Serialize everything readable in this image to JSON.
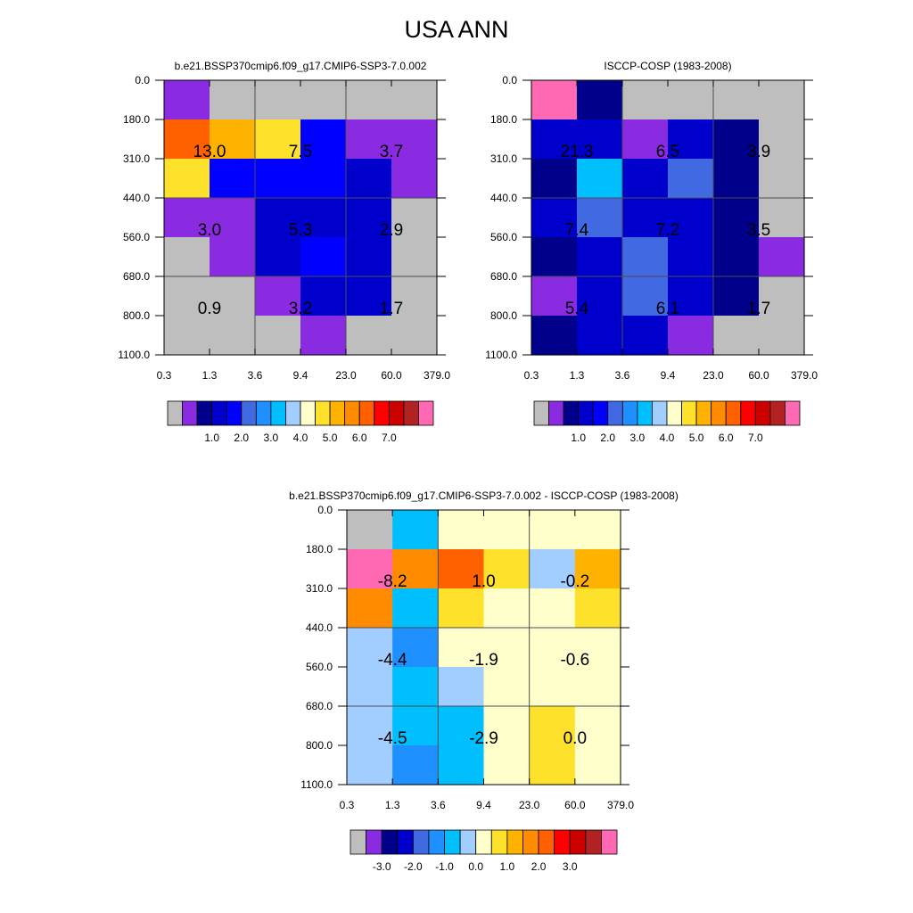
{
  "page_title": "USA ANN",
  "colors": {
    "missing": "#bebebe",
    "grid_line": "#4d4d4d"
  },
  "chart_data": [
    {
      "type": "heatmap",
      "title": "b.e21.BSSP370cmip6.f09_g17.CMIP6-SSP3-7.0.002",
      "x_tick_labels": [
        "0.3",
        "1.3",
        "3.6",
        "9.4",
        "23.0",
        "60.0",
        "379.0"
      ],
      "y_tick_labels": [
        "0.0",
        "180.0",
        "310.0",
        "440.0",
        "560.0",
        "680.0",
        "800.0",
        "1100.0"
      ],
      "cells": [
        [
          1,
          0,
          0,
          0,
          0,
          0
        ],
        [
          13,
          11,
          10,
          4,
          1,
          1
        ],
        [
          10,
          4,
          4,
          4,
          3,
          1
        ],
        [
          1,
          1,
          3,
          3,
          3,
          0
        ],
        [
          0,
          1,
          3,
          4,
          3,
          0
        ],
        [
          0,
          0,
          1,
          3,
          3,
          0
        ],
        [
          0,
          0,
          0,
          1,
          0,
          0
        ]
      ],
      "annotations": [
        [
          "13.0",
          "7.5",
          "3.7"
        ],
        [
          "3.0",
          "5.3",
          "2.9"
        ],
        [
          "0.9",
          "3.2",
          "1.7"
        ]
      ],
      "colorbar": {
        "colors": [
          "#bebebe",
          "#8a2be2",
          "#00008b",
          "#0000cd",
          "#0000ff",
          "#4169e1",
          "#1e90ff",
          "#00bfff",
          "#a2cdff",
          "#ffffcc",
          "#fde12a",
          "#ffb300",
          "#ff8c00",
          "#ff6000",
          "#ff0000",
          "#cd0000",
          "#b22222",
          "#ff69b4"
        ],
        "tick_labels": [
          "1.0",
          "2.0",
          "3.0",
          "4.0",
          "5.0",
          "6.0",
          "7.0"
        ]
      }
    },
    {
      "type": "heatmap",
      "title": "ISCCP-COSP (1983-2008)",
      "x_tick_labels": [
        "0.3",
        "1.3",
        "3.6",
        "9.4",
        "23.0",
        "60.0",
        "379.0"
      ],
      "y_tick_labels": [
        "0.0",
        "180.0",
        "310.0",
        "440.0",
        "560.0",
        "680.0",
        "800.0",
        "1100.0"
      ],
      "cells": [
        [
          17,
          2,
          0,
          0,
          0,
          0
        ],
        [
          3,
          3,
          1,
          3,
          2,
          0
        ],
        [
          2,
          7,
          3,
          5,
          2,
          0
        ],
        [
          3,
          5,
          3,
          3,
          2,
          0
        ],
        [
          2,
          3,
          5,
          3,
          2,
          1
        ],
        [
          1,
          3,
          5,
          3,
          2,
          0
        ],
        [
          2,
          3,
          3,
          1,
          0,
          0
        ]
      ],
      "annotations": [
        [
          "21.3",
          "6.5",
          "3.9"
        ],
        [
          "7.4",
          "7.2",
          "3.5"
        ],
        [
          "5.4",
          "6.1",
          "1.7"
        ]
      ],
      "colorbar": {
        "colors": [
          "#bebebe",
          "#8a2be2",
          "#00008b",
          "#0000cd",
          "#0000ff",
          "#4169e1",
          "#1e90ff",
          "#00bfff",
          "#a2cdff",
          "#ffffcc",
          "#fde12a",
          "#ffb300",
          "#ff8c00",
          "#ff6000",
          "#ff0000",
          "#cd0000",
          "#b22222",
          "#ff69b4"
        ],
        "tick_labels": [
          "1.0",
          "2.0",
          "3.0",
          "4.0",
          "5.0",
          "6.0",
          "7.0"
        ]
      }
    },
    {
      "type": "heatmap",
      "title": "b.e21.BSSP370cmip6.f09_g17.CMIP6-SSP3-7.0.002 - ISCCP-COSP (1983-2008)",
      "x_tick_labels": [
        "0.3",
        "1.3",
        "3.6",
        "9.4",
        "23.0",
        "60.0",
        "379.0"
      ],
      "y_tick_labels": [
        "0.0",
        "180.0",
        "310.0",
        "440.0",
        "560.0",
        "680.0",
        "800.0",
        "1100.0"
      ],
      "cells": [
        [
          0,
          6,
          8,
          8,
          8,
          8
        ],
        [
          16,
          11,
          12,
          9,
          7,
          10
        ],
        [
          11,
          6,
          9,
          8,
          8,
          9
        ],
        [
          7,
          5,
          8,
          8,
          8,
          8
        ],
        [
          7,
          6,
          7,
          8,
          8,
          8
        ],
        [
          7,
          6,
          6,
          8,
          9,
          8
        ],
        [
          7,
          5,
          6,
          8,
          9,
          8
        ]
      ],
      "annotations": [
        [
          "-8.2",
          "1.0",
          "-0.2"
        ],
        [
          "-4.4",
          "-1.9",
          "-0.6"
        ],
        [
          "-4.5",
          "-2.9",
          "0.0"
        ]
      ],
      "colorbar": {
        "colors": [
          "#bebebe",
          "#8a2be2",
          "#00008b",
          "#0000cd",
          "#4169e1",
          "#1e90ff",
          "#00bfff",
          "#a2cdff",
          "#ffffcc",
          "#fde12a",
          "#ffb300",
          "#ff8c00",
          "#ff6000",
          "#ff0000",
          "#cd0000",
          "#b22222",
          "#ff69b4"
        ],
        "tick_labels": [
          "-3.0",
          "-2.0",
          "-1.0",
          "0.0",
          "1.0",
          "2.0",
          "3.0"
        ]
      }
    }
  ]
}
